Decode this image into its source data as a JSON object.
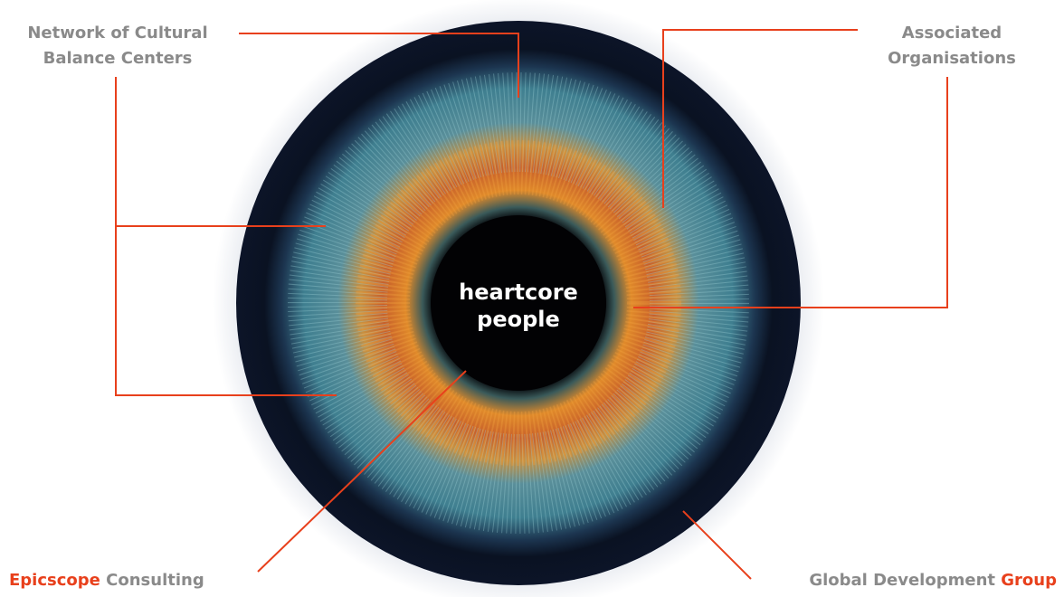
{
  "center": {
    "lines": [
      "heartcore",
      "people"
    ]
  },
  "labels": [
    {
      "lines": [
        "Network of Cultural",
        "Balance Centers"
      ]
    },
    {
      "lines": [
        "Associated",
        "Organisations"
      ]
    },
    {
      "parts": [
        "Epicscope",
        "Consulting"
      ]
    },
    {
      "parts": [
        "Global Development",
        "Group"
      ]
    }
  ]
}
